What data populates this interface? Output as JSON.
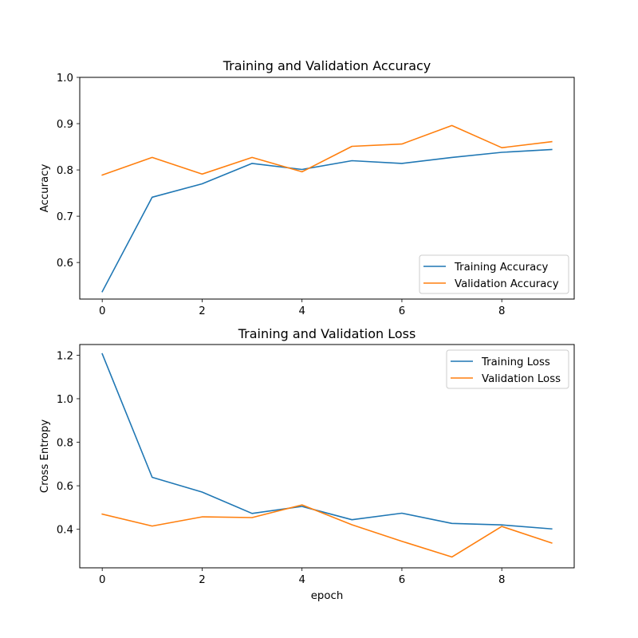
{
  "chart_data": [
    {
      "type": "line",
      "title": "Training and Validation Accuracy",
      "xlabel": "",
      "ylabel": "Accuracy",
      "x": [
        0,
        1,
        2,
        3,
        4,
        5,
        6,
        7,
        8,
        9
      ],
      "xlim": [
        -0.45,
        9.45
      ],
      "ylim": [
        0.521,
        1.0
      ],
      "xticks": [
        0,
        2,
        4,
        6,
        8
      ],
      "xtick_labels": [
        "0",
        "2",
        "4",
        "6",
        "8"
      ],
      "yticks": [
        0.6,
        0.7,
        0.8,
        0.9,
        1.0
      ],
      "ytick_labels": [
        "0.6",
        "0.7",
        "0.8",
        "0.9",
        "1.0"
      ],
      "grid": false,
      "legend_position": "lower-right",
      "series": [
        {
          "name": "Training Accuracy",
          "color": "#1f77b4",
          "values": [
            0.537,
            0.741,
            0.77,
            0.814,
            0.801,
            0.82,
            0.814,
            0.827,
            0.838,
            0.844
          ]
        },
        {
          "name": "Validation Accuracy",
          "color": "#ff7f0e",
          "values": [
            0.789,
            0.827,
            0.791,
            0.827,
            0.796,
            0.851,
            0.856,
            0.896,
            0.848,
            0.861
          ]
        }
      ]
    },
    {
      "type": "line",
      "title": "Training and Validation Loss",
      "xlabel": "epoch",
      "ylabel": "Cross Entropy",
      "x": [
        0,
        1,
        2,
        3,
        4,
        5,
        6,
        7,
        8,
        9
      ],
      "xlim": [
        -0.45,
        9.45
      ],
      "ylim": [
        0.223,
        1.249
      ],
      "xticks": [
        0,
        2,
        4,
        6,
        8
      ],
      "xtick_labels": [
        "0",
        "2",
        "4",
        "6",
        "8"
      ],
      "yticks": [
        0.4,
        0.6,
        0.8,
        1.0,
        1.2
      ],
      "ytick_labels": [
        "0.4",
        "0.6",
        "0.8",
        "1.0",
        "1.2"
      ],
      "grid": false,
      "legend_position": "upper-right",
      "series": [
        {
          "name": "Training Loss",
          "color": "#1f77b4",
          "values": [
            1.206,
            0.639,
            0.571,
            0.473,
            0.505,
            0.444,
            0.474,
            0.427,
            0.42,
            0.402
          ]
        },
        {
          "name": "Validation Loss",
          "color": "#ff7f0e",
          "values": [
            0.47,
            0.415,
            0.457,
            0.454,
            0.512,
            0.421,
            0.345,
            0.273,
            0.413,
            0.337
          ]
        }
      ]
    }
  ]
}
